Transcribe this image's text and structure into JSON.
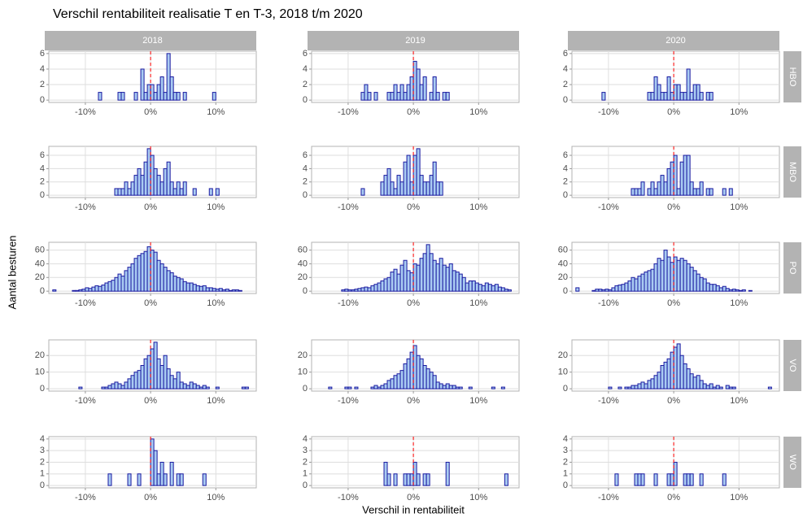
{
  "chart_data": {
    "type": "histogram",
    "title": "Verschil rentabiliteit realisatie T en T-3, 2018 t/m 2020",
    "x_label": "Verschil in rentabiliteit",
    "y_label": "Aantal besturen",
    "color": "#a9cbf2",
    "edge_color": "#1a1aa0",
    "vline": 0,
    "vline_color": "#ff0000",
    "grid": true,
    "bins": [
      -15,
      -14.5,
      -14,
      -13.5,
      -13,
      -12.5,
      -12,
      -11.5,
      -11,
      -10.5,
      -10,
      -9.5,
      -9,
      -8.5,
      -8,
      -7.5,
      -7,
      -6.5,
      -6,
      -5.5,
      -5,
      -4.5,
      -4,
      -3.5,
      -3,
      -2.5,
      -2,
      -1.5,
      -1,
      -0.5,
      0,
      0.5,
      1,
      1.5,
      2,
      2.5,
      3,
      3.5,
      4,
      4.5,
      5,
      5.5,
      6,
      6.5,
      7,
      7.5,
      8,
      8.5,
      9,
      9.5,
      10,
      10.5,
      11,
      11.5,
      12,
      12.5,
      13,
      13.5,
      14,
      14.5,
      15
    ],
    "xlim": [
      -15.6,
      16.2
    ],
    "xticks": [
      {
        "value": -10,
        "label": "-10%"
      },
      {
        "value": 0,
        "label": "0%"
      },
      {
        "value": 10,
        "label": "10%"
      }
    ],
    "columns": [
      "2018",
      "2019",
      "2020"
    ],
    "rows": [
      {
        "name": "HBO",
        "ylim": [
          -0.3,
          6.3
        ],
        "yticks": [
          0,
          2,
          4,
          6
        ],
        "values": [
          [
            0,
            0,
            0,
            0,
            0,
            0,
            0,
            0,
            0,
            0,
            0,
            0,
            0,
            0,
            1,
            0,
            0,
            0,
            0,
            0,
            1,
            1,
            0,
            0,
            0,
            1,
            0,
            4,
            1,
            2,
            2,
            1,
            2,
            3,
            1,
            6,
            3,
            1,
            1,
            0,
            1,
            0,
            0,
            0,
            0,
            0,
            0,
            0,
            0,
            1,
            0,
            0,
            0,
            0,
            0,
            0,
            0,
            0,
            0,
            0
          ],
          [
            0,
            0,
            0,
            0,
            0,
            0,
            0,
            0,
            0,
            0,
            0,
            0,
            0,
            0,
            1,
            2,
            1,
            0,
            1,
            0,
            0,
            0,
            1,
            1,
            2,
            1,
            2,
            1,
            2,
            3,
            5,
            4,
            2,
            3,
            0,
            1,
            3,
            1,
            0,
            1,
            1,
            0,
            0,
            0,
            0,
            0,
            0,
            0,
            0,
            0,
            0,
            0,
            0,
            0,
            0,
            0,
            0,
            0,
            0,
            0
          ],
          [
            0,
            0,
            0,
            0,
            0,
            0,
            0,
            0,
            1,
            0,
            0,
            0,
            0,
            0,
            0,
            0,
            0,
            0,
            0,
            0,
            0,
            0,
            1,
            1,
            3,
            2,
            1,
            1,
            3,
            1,
            2,
            2,
            1,
            1,
            4,
            1,
            2,
            2,
            1,
            0,
            1,
            1,
            0,
            0,
            0,
            0,
            0,
            0,
            0,
            0,
            0,
            0,
            0,
            0,
            0,
            0,
            0,
            0,
            0,
            0
          ]
        ]
      },
      {
        "name": "MBO",
        "ylim": [
          -0.35,
          7.35
        ],
        "yticks": [
          0,
          2,
          4,
          6
        ],
        "values": [
          [
            0,
            0,
            0,
            0,
            0,
            0,
            0,
            0,
            0,
            0,
            0,
            0,
            0,
            0,
            0,
            0,
            0,
            0,
            0,
            1,
            1,
            1,
            2,
            1,
            2,
            3,
            4,
            3,
            5,
            7,
            6,
            4,
            3,
            2,
            4,
            5,
            2,
            1,
            2,
            1,
            2,
            0,
            0,
            1,
            0,
            0,
            0,
            0,
            1,
            0,
            1,
            0,
            0,
            0,
            0,
            0,
            0,
            0,
            0,
            0
          ],
          [
            0,
            0,
            0,
            0,
            0,
            0,
            0,
            0,
            0,
            0,
            0,
            0,
            0,
            0,
            1,
            0,
            0,
            0,
            0,
            0,
            2,
            3,
            4,
            2,
            1,
            3,
            2,
            5,
            6,
            2,
            6,
            7,
            3,
            2,
            2,
            3,
            5,
            2,
            2,
            0,
            0,
            0,
            0,
            0,
            0,
            0,
            0,
            0,
            0,
            0,
            0,
            0,
            0,
            0,
            0,
            0,
            0,
            0,
            0,
            0
          ],
          [
            0,
            0,
            0,
            0,
            0,
            0,
            0,
            0,
            0,
            0,
            0,
            0,
            0,
            0,
            0,
            0,
            0,
            1,
            1,
            1,
            2,
            0,
            1,
            2,
            1,
            2,
            3,
            2,
            4,
            5,
            6,
            1,
            5,
            6,
            6,
            2,
            1,
            1,
            2,
            0,
            1,
            1,
            0,
            0,
            0,
            1,
            0,
            1,
            0,
            0,
            0,
            0,
            0,
            0,
            0,
            0,
            0,
            0,
            0,
            0
          ]
        ]
      },
      {
        "name": "PO",
        "ylim": [
          -3.4,
          71.4
        ],
        "yticks": [
          0,
          20,
          40,
          60
        ],
        "values": [
          [
            2,
            0,
            0,
            0,
            0,
            0,
            1,
            1,
            2,
            3,
            5,
            4,
            6,
            8,
            7,
            9,
            12,
            14,
            16,
            20,
            25,
            22,
            30,
            35,
            40,
            48,
            52,
            55,
            58,
            65,
            60,
            57,
            45,
            40,
            35,
            30,
            27,
            22,
            20,
            18,
            14,
            12,
            12,
            10,
            8,
            7,
            8,
            5,
            5,
            4,
            3,
            4,
            2,
            3,
            1,
            2,
            2,
            1,
            0,
            0
          ],
          [
            0,
            0,
            0,
            0,
            0,
            0,
            0,
            0,
            2,
            3,
            2,
            2,
            3,
            4,
            5,
            6,
            5,
            8,
            10,
            12,
            15,
            18,
            20,
            28,
            32,
            25,
            38,
            45,
            30,
            27,
            40,
            38,
            48,
            55,
            68,
            55,
            45,
            40,
            48,
            38,
            35,
            40,
            30,
            28,
            25,
            20,
            12,
            15,
            15,
            12,
            10,
            8,
            12,
            10,
            8,
            10,
            6,
            5,
            3,
            2
          ],
          [
            5,
            0,
            0,
            0,
            0,
            1,
            3,
            3,
            2,
            3,
            2,
            5,
            8,
            9,
            10,
            12,
            15,
            20,
            18,
            22,
            25,
            28,
            30,
            32,
            40,
            48,
            45,
            60,
            50,
            42,
            50,
            45,
            48,
            45,
            40,
            35,
            30,
            25,
            20,
            18,
            12,
            10,
            10,
            8,
            5,
            7,
            4,
            2,
            3,
            2,
            1,
            2,
            0,
            1,
            0,
            0,
            0,
            0,
            0,
            0
          ]
        ]
      },
      {
        "name": "VO",
        "ylim": [
          -1.4,
          29.4
        ],
        "yticks": [
          0,
          10,
          20
        ],
        "values": [
          [
            0,
            0,
            0,
            0,
            0,
            0,
            0,
            0,
            1,
            0,
            0,
            0,
            0,
            0,
            0,
            1,
            1,
            2,
            3,
            4,
            3,
            2,
            4,
            6,
            8,
            10,
            11,
            14,
            18,
            20,
            24,
            28,
            18,
            14,
            20,
            12,
            8,
            6,
            10,
            4,
            3,
            2,
            4,
            3,
            2,
            1,
            2,
            1,
            0,
            0,
            1,
            0,
            0,
            0,
            0,
            0,
            0,
            0,
            1,
            1
          ],
          [
            0,
            0,
            0,
            0,
            1,
            0,
            0,
            0,
            0,
            1,
            1,
            0,
            1,
            0,
            0,
            0,
            0,
            1,
            2,
            1,
            2,
            3,
            5,
            6,
            8,
            9,
            11,
            15,
            18,
            22,
            26,
            20,
            18,
            14,
            12,
            10,
            8,
            4,
            3,
            2,
            3,
            2,
            2,
            1,
            1,
            0,
            0,
            1,
            0,
            0,
            0,
            0,
            0,
            0,
            1,
            0,
            0,
            1,
            0,
            0
          ],
          [
            0,
            0,
            0,
            0,
            0,
            0,
            0,
            0,
            0,
            0,
            1,
            0,
            0,
            1,
            0,
            1,
            1,
            2,
            2,
            3,
            4,
            3,
            5,
            6,
            8,
            10,
            14,
            16,
            18,
            22,
            25,
            27,
            20,
            15,
            12,
            9,
            7,
            8,
            5,
            3,
            2,
            3,
            1,
            2,
            1,
            0,
            2,
            1,
            1,
            0,
            0,
            0,
            0,
            0,
            0,
            0,
            0,
            0,
            0,
            1
          ]
        ]
      },
      {
        "name": "WO",
        "ylim": [
          -0.2,
          4.2
        ],
        "yticks": [
          0,
          1,
          2,
          3,
          4
        ],
        "values": [
          [
            0,
            0,
            0,
            0,
            0,
            0,
            0,
            0,
            0,
            0,
            0,
            0,
            0,
            0,
            0,
            0,
            0,
            1,
            0,
            0,
            0,
            0,
            0,
            1,
            0,
            0,
            1,
            0,
            0,
            0,
            4,
            3,
            1,
            2,
            1,
            0,
            2,
            0,
            1,
            1,
            0,
            0,
            0,
            0,
            0,
            0,
            1,
            0,
            0,
            0,
            0,
            0,
            0,
            0,
            0,
            0,
            0,
            0,
            0,
            0
          ],
          [
            0,
            0,
            0,
            0,
            0,
            0,
            0,
            0,
            0,
            0,
            0,
            0,
            0,
            0,
            0,
            0,
            0,
            0,
            0,
            0,
            0,
            2,
            1,
            0,
            1,
            0,
            0,
            1,
            1,
            1,
            2,
            1,
            0,
            1,
            1,
            0,
            0,
            0,
            0,
            0,
            2,
            0,
            0,
            0,
            0,
            0,
            0,
            0,
            0,
            0,
            0,
            0,
            0,
            0,
            0,
            0,
            0,
            0,
            1,
            0
          ],
          [
            0,
            0,
            0,
            0,
            0,
            0,
            0,
            0,
            0,
            0,
            0,
            0,
            1,
            0,
            0,
            0,
            0,
            0,
            1,
            1,
            1,
            0,
            0,
            0,
            1,
            0,
            0,
            0,
            1,
            1,
            2,
            0,
            0,
            1,
            1,
            1,
            0,
            0,
            1,
            0,
            0,
            0,
            0,
            0,
            0,
            1,
            0,
            0,
            0,
            0,
            0,
            0,
            0,
            0,
            0,
            0,
            0,
            0,
            0,
            0
          ]
        ]
      }
    ]
  }
}
